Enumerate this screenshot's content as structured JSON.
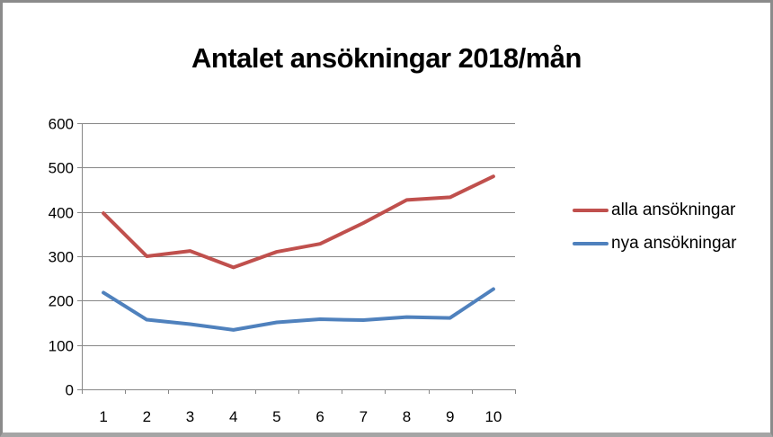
{
  "window": {
    "border_color": "#8b8b8b",
    "background": "#ffffff"
  },
  "chart_data": {
    "type": "line",
    "title": "Antalet ansökningar 2018/mån",
    "categories": [
      "1",
      "2",
      "3",
      "4",
      "5",
      "6",
      "7",
      "8",
      "9",
      "10"
    ],
    "series": [
      {
        "name": "alla ansökningar",
        "color": "#C0504D",
        "values": [
          397,
          300,
          312,
          275,
          310,
          328,
          375,
          427,
          433,
          480
        ]
      },
      {
        "name": "nya ansökningar",
        "color": "#4F81BD",
        "values": [
          218,
          157,
          147,
          134,
          151,
          158,
          156,
          163,
          161,
          226
        ]
      }
    ],
    "xlabel": "",
    "ylabel": "",
    "ylim": [
      0,
      600
    ],
    "yticks": [
      0,
      100,
      200,
      300,
      400,
      500,
      600
    ],
    "grid": true,
    "legend_position": "right",
    "gridline_color": "#878787",
    "axis_color": "#878787",
    "tick_label_color": "#000000",
    "tick_font_size": 17,
    "line_width": 4
  }
}
